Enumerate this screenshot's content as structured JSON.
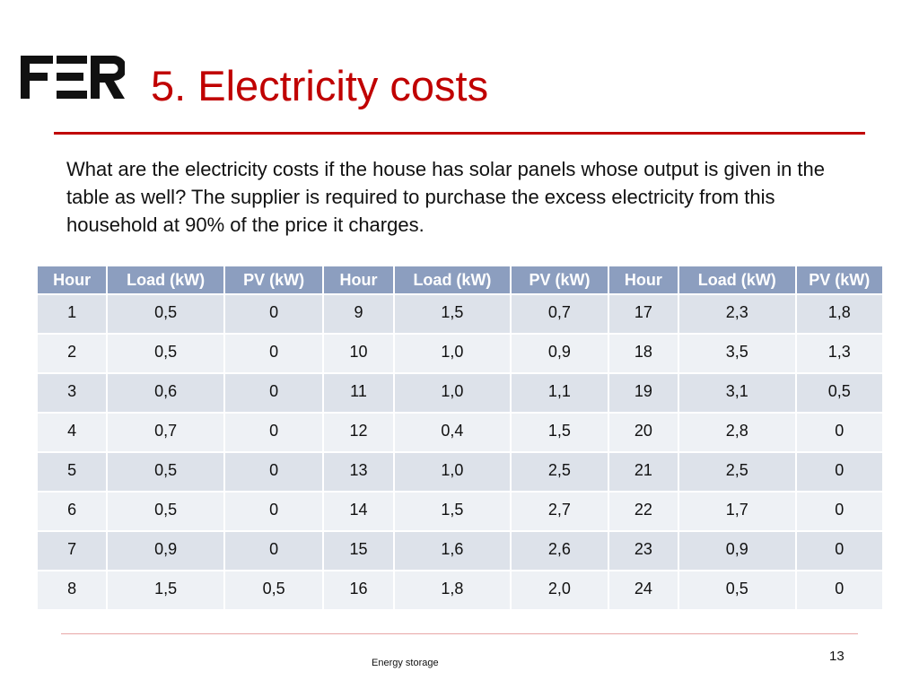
{
  "slide": {
    "title": "5. Electricity costs",
    "intro": "What are the electricity costs if the house has solar panels whose output is given in the table as well? The supplier is required to purchase the excess electricity from this household at 90% of the price it charges.",
    "footer": "Energy storage",
    "page_number": "13"
  },
  "table": {
    "headers": [
      "Hour",
      "Load (kW)",
      "PV (kW)",
      "Hour",
      "Load (kW)",
      "PV (kW)",
      "Hour",
      "Load (kW)",
      "PV (kW)"
    ],
    "rows": [
      [
        "1",
        "0,5",
        "0",
        "9",
        "1,5",
        "0,7",
        "17",
        "2,3",
        "1,8"
      ],
      [
        "2",
        "0,5",
        "0",
        "10",
        "1,0",
        "0,9",
        "18",
        "3,5",
        "1,3"
      ],
      [
        "3",
        "0,6",
        "0",
        "11",
        "1,0",
        "1,1",
        "19",
        "3,1",
        "0,5"
      ],
      [
        "4",
        "0,7",
        "0",
        "12",
        "0,4",
        "1,5",
        "20",
        "2,8",
        "0"
      ],
      [
        "5",
        "0,5",
        "0",
        "13",
        "1,0",
        "2,5",
        "21",
        "2,5",
        "0"
      ],
      [
        "6",
        "0,5",
        "0",
        "14",
        "1,5",
        "2,7",
        "22",
        "1,7",
        "0"
      ],
      [
        "7",
        "0,9",
        "0",
        "15",
        "1,6",
        "2,6",
        "23",
        "0,9",
        "0"
      ],
      [
        "8",
        "1,5",
        "0,5",
        "16",
        "1,8",
        "2,0",
        "24",
        "0,5",
        "0"
      ]
    ]
  },
  "colors": {
    "title": "#c00000",
    "header_bg": "#8c9ebf",
    "row_bg": "#dde2ea",
    "row_alt_bg": "#eef1f5"
  }
}
